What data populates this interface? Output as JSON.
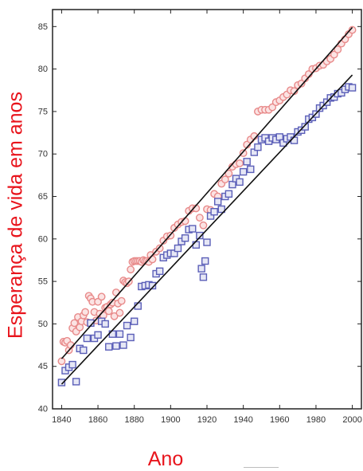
{
  "chart_data": {
    "type": "scatter",
    "title": "",
    "xlabel": "Ano",
    "ylabel": "Esperança de vida em anos",
    "xlim": [
      1835,
      2005
    ],
    "ylim": [
      40,
      87
    ],
    "xticks": [
      1840,
      1860,
      1880,
      1900,
      1920,
      1940,
      1960,
      1980,
      2000
    ],
    "yticks": [
      40,
      45,
      50,
      55,
      60,
      65,
      70,
      75,
      80,
      85
    ],
    "grid": false,
    "legend": "none",
    "series": [
      {
        "marker": "circle",
        "color": "#e88a8a",
        "x": [
          1840,
          1841,
          1842,
          1843,
          1844,
          1845,
          1846,
          1847,
          1848,
          1849,
          1850,
          1851,
          1852,
          1853,
          1854,
          1855,
          1856,
          1857,
          1858,
          1859,
          1860,
          1861,
          1862,
          1863,
          1864,
          1865,
          1866,
          1867,
          1868,
          1869,
          1870,
          1871,
          1872,
          1873,
          1874,
          1875,
          1876,
          1877,
          1878,
          1879,
          1880,
          1881,
          1882,
          1883,
          1884,
          1885,
          1886,
          1887,
          1888,
          1889,
          1890,
          1892,
          1894,
          1896,
          1898,
          1900,
          1902,
          1904,
          1906,
          1908,
          1910,
          1912,
          1914,
          1916,
          1918,
          1920,
          1922,
          1924,
          1926,
          1928,
          1930,
          1932,
          1934,
          1936,
          1938,
          1940,
          1942,
          1944,
          1946,
          1948,
          1950,
          1952,
          1954,
          1956,
          1958,
          1960,
          1962,
          1964,
          1966,
          1968,
          1970,
          1972,
          1974,
          1976,
          1978,
          1980,
          1982,
          1984,
          1986,
          1988,
          1990,
          1992,
          1994,
          1996,
          1998,
          2000
        ],
        "y": [
          45.6,
          47.9,
          47.8,
          48.0,
          46.9,
          47.5,
          49.5,
          50.1,
          49.1,
          50.8,
          49.6,
          50.3,
          51.0,
          51.4,
          50.2,
          53.3,
          53.0,
          52.6,
          51.4,
          50.4,
          52.6,
          51.2,
          53.2,
          51.0,
          51.9,
          52.0,
          51.5,
          52.3,
          52.5,
          50.9,
          53.7,
          52.4,
          51.3,
          52.7,
          55.1,
          54.9,
          54.8,
          55.0,
          56.4,
          57.3,
          57.4,
          57.4,
          57.4,
          57.4,
          57.3,
          57.5,
          57.4,
          57.4,
          57.3,
          58.1,
          57.6,
          58.5,
          58.9,
          59.8,
          60.3,
          60.4,
          61.3,
          61.7,
          62.0,
          62.1,
          63.3,
          63.6,
          63.6,
          62.5,
          61.6,
          63.5,
          63.4,
          65.3,
          65.0,
          66.5,
          67.0,
          67.7,
          68.5,
          68.8,
          68.9,
          70.1,
          71.1,
          71.7,
          72.1,
          75.0,
          75.2,
          75.2,
          75.2,
          75.5,
          76.1,
          76.3,
          76.7,
          77.0,
          77.5,
          77.4,
          78.1,
          78.3,
          78.9,
          79.4,
          80.0,
          80.1,
          80.4,
          80.5,
          80.9,
          81.2,
          81.7,
          82.3,
          83.0,
          83.5,
          84.1,
          84.6
        ]
      },
      {
        "marker": "square",
        "color": "#5b5fb8",
        "x": [
          1840,
          1842,
          1844,
          1846,
          1848,
          1850,
          1852,
          1854,
          1856,
          1858,
          1860,
          1862,
          1864,
          1866,
          1868,
          1870,
          1872,
          1874,
          1876,
          1878,
          1880,
          1882,
          1884,
          1886,
          1888,
          1890,
          1892,
          1894,
          1896,
          1898,
          1900,
          1902,
          1904,
          1906,
          1908,
          1910,
          1912,
          1914,
          1916,
          1917,
          1918,
          1919,
          1920,
          1922,
          1924,
          1926,
          1928,
          1930,
          1932,
          1934,
          1936,
          1938,
          1940,
          1942,
          1944,
          1946,
          1948,
          1950,
          1952,
          1954,
          1956,
          1958,
          1960,
          1962,
          1964,
          1966,
          1968,
          1970,
          1972,
          1974,
          1976,
          1978,
          1980,
          1982,
          1984,
          1986,
          1988,
          1990,
          1992,
          1994,
          1996,
          1998,
          2000
        ],
        "y": [
          43.1,
          44.5,
          44.9,
          45.2,
          43.2,
          47.1,
          46.9,
          48.3,
          50.1,
          48.3,
          48.7,
          50.3,
          50.0,
          47.3,
          48.8,
          47.4,
          48.8,
          47.5,
          49.8,
          48.4,
          50.3,
          52.1,
          54.4,
          54.5,
          54.6,
          54.5,
          55.9,
          56.2,
          57.8,
          58.1,
          58.3,
          58.3,
          58.9,
          59.7,
          60.1,
          61.1,
          61.2,
          59.3,
          60.4,
          56.5,
          55.5,
          57.4,
          59.6,
          62.7,
          63.2,
          64.4,
          63.5,
          65.0,
          65.3,
          66.4,
          67.1,
          66.7,
          67.9,
          69.1,
          68.2,
          70.2,
          70.8,
          71.7,
          71.9,
          71.5,
          71.9,
          71.7,
          72.0,
          71.3,
          71.8,
          72.0,
          71.6,
          72.6,
          72.8,
          73.2,
          74.1,
          74.3,
          74.7,
          75.4,
          75.7,
          76.1,
          76.6,
          76.7,
          77.1,
          77.2,
          77.6,
          77.9,
          77.8
        ]
      }
    ],
    "trendlines": [
      {
        "color": "#111111",
        "x": [
          1840,
          2000
        ],
        "y": [
          45.9,
          84.9
        ]
      },
      {
        "color": "#111111",
        "x": [
          1840,
          2000
        ],
        "y": [
          42.9,
          79.3
        ]
      }
    ]
  }
}
